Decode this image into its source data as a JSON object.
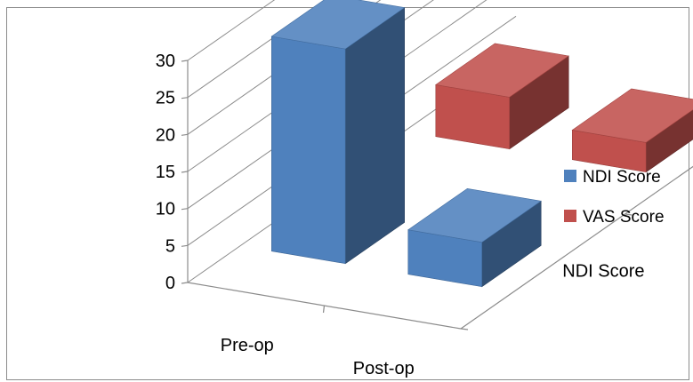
{
  "chart_data": {
    "type": "bar",
    "subtype": "3d-column",
    "title": "",
    "categories": [
      "Pre-op",
      "Post-op"
    ],
    "series": [
      {
        "name": "NDI Score",
        "values": [
          29,
          6
        ],
        "color": "#4f81bd"
      },
      {
        "name": "VAS Score",
        "values": [
          7,
          4
        ],
        "color": "#c0504d"
      }
    ],
    "ylim": [
      0,
      30
    ],
    "yticks": [
      "0",
      "5",
      "10",
      "15",
      "20",
      "25",
      "30"
    ],
    "depth_labels": [
      "NDI Score",
      "VAS Score"
    ],
    "grid": true,
    "legend_position": "right"
  }
}
